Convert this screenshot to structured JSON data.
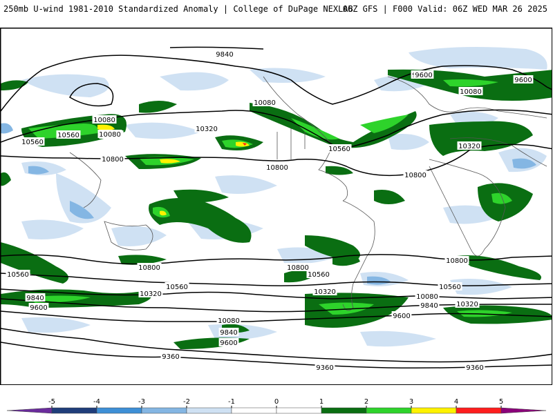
{
  "header": {
    "left": "250mb U-wind 1981-2010 Standardized Anomaly | College of DuPage NEXLAB",
    "right": "06Z GFS | F000 Valid: 06Z WED MAR 26 2025"
  },
  "colors": {
    "neg5": "#6a2c9c",
    "neg4": "#1f3d7a",
    "neg3": "#3d8fd6",
    "neg2": "#84b6e3",
    "neg1": "#cfe1f3",
    "pos1": "#ffffff",
    "pos2": "#0a6e12",
    "pos3": "#2ed32b",
    "pos4": "#fff200",
    "pos5": "#ff1d1d",
    "pos6": "#8b007a"
  },
  "contour_labels": [
    {
      "text": "9840"
    },
    {
      "text": "10080"
    },
    {
      "text": "10320"
    },
    {
      "text": "10560"
    },
    {
      "text": "10800"
    },
    {
      "text": "10800"
    },
    {
      "text": "10800"
    },
    {
      "text": "10560"
    },
    {
      "text": "10320"
    },
    {
      "text": "10080"
    },
    {
      "text": "9840"
    },
    {
      "text": "9600"
    },
    {
      "text": "9360"
    },
    {
      "text": "9360"
    },
    {
      "text": "9360"
    },
    {
      "text": "9600"
    },
    {
      "text": "9840"
    },
    {
      "text": "10080"
    },
    {
      "text": "10320"
    },
    {
      "text": "10560"
    },
    {
      "text": "10800"
    },
    {
      "text": "10800"
    },
    {
      "text": "10560"
    },
    {
      "text": "10320"
    },
    {
      "text": "10080"
    },
    {
      "text": "9840"
    },
    {
      "text": "9600"
    },
    {
      "text": "10560"
    },
    {
      "text": "10800"
    },
    {
      "text": "10560"
    },
    {
      "text": "10320"
    },
    {
      "text": "10080"
    },
    {
      "text": "9840"
    },
    {
      "text": "9600"
    },
    {
      "text": "10320"
    },
    {
      "text": "10080"
    },
    {
      "text": "10560"
    },
    {
      "text": "9600"
    }
  ],
  "colorbar": {
    "ticks": [
      "-5",
      "-4",
      "-3",
      "-2",
      "-1",
      "0",
      "1",
      "2",
      "3",
      "4",
      "5"
    ]
  }
}
